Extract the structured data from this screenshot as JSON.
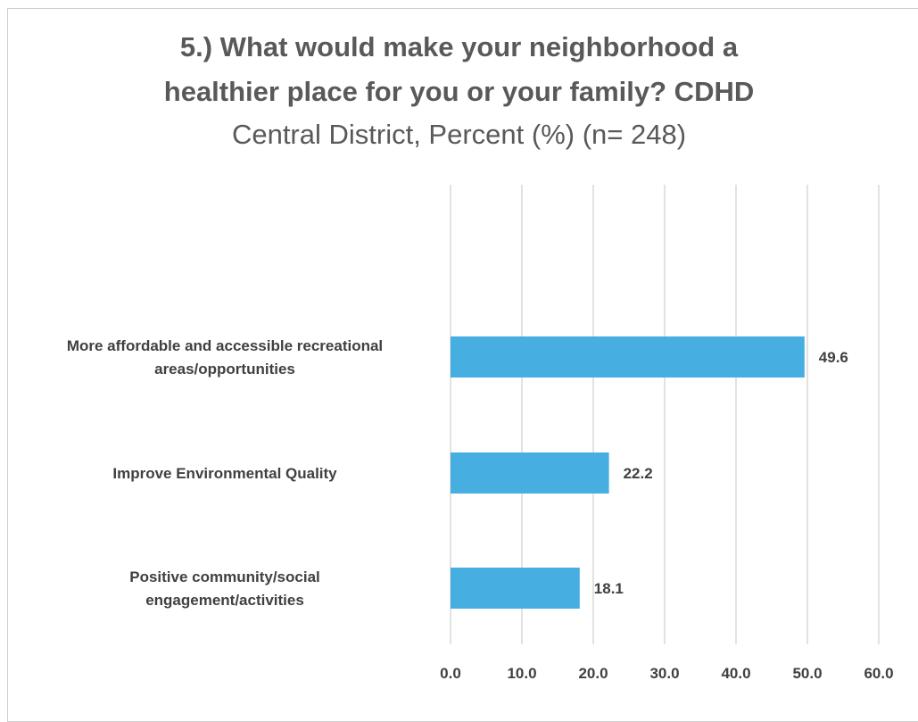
{
  "chart_data": {
    "type": "bar",
    "orientation": "horizontal",
    "title_line1": "5.) What would make your neighborhood a",
    "title_line2": "healthier place for you or your family? CDHD",
    "subtitle": "Central District, Percent (%) (n= 248)",
    "categories": [
      [
        "More affordable and accessible recreational",
        "areas/opportunities"
      ],
      [
        "Improve Environmental Quality"
      ],
      [
        "Positive community/social",
        "engagement/activities"
      ]
    ],
    "values": [
      49.6,
      22.2,
      18.1
    ],
    "value_labels": [
      "49.6",
      "22.2",
      "18.1"
    ],
    "xlim": [
      0,
      60
    ],
    "x_ticks": [
      0,
      10,
      20,
      30,
      40,
      50,
      60
    ],
    "x_tick_labels": [
      "0.0",
      "10.0",
      "20.0",
      "30.0",
      "40.0",
      "50.0",
      "60.0"
    ],
    "grid": "vertical",
    "legend": "none",
    "bar_color": "#46AEE0",
    "gridline_color": "#d9d9d9"
  }
}
